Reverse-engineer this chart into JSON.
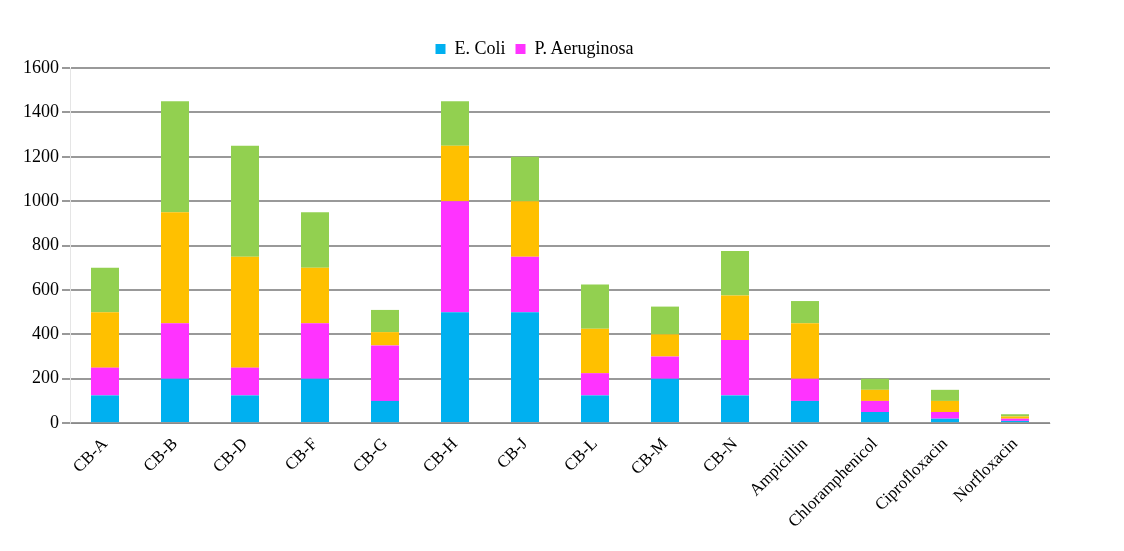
{
  "chart_data": {
    "type": "bar",
    "stacked": true,
    "categories": [
      "CB-A",
      "CB-B",
      "CB-D",
      "CB-F",
      "CB-G",
      "CB-H",
      "CB-J",
      "CB-L",
      "CB-M",
      "CB-N",
      "Ampicillin",
      "Chloramphenicol",
      "Ciprofloxacin",
      "Norfloxacin"
    ],
    "series": [
      {
        "name": "E. Coli",
        "color": "#00b0f0",
        "values": [
          125,
          200,
          125,
          200,
          100,
          500,
          500,
          125,
          200,
          125,
          100,
          50,
          20,
          10
        ]
      },
      {
        "name": "P. Aeruginosa",
        "color": "#ff33ff",
        "values": [
          125,
          250,
          125,
          250,
          250,
          500,
          250,
          100,
          100,
          250,
          100,
          50,
          30,
          10
        ]
      },
      {
        "color": "#ffc000",
        "values": [
          250,
          500,
          500,
          250,
          60,
          250,
          250,
          200,
          100,
          200,
          250,
          50,
          50,
          10
        ]
      },
      {
        "color": "#92d050",
        "values": [
          200,
          500,
          500,
          250,
          100,
          200,
          200,
          200,
          125,
          200,
          100,
          50,
          50,
          10
        ]
      }
    ],
    "ylim": [
      0,
      1600
    ],
    "yticks": [
      0,
      200,
      400,
      600,
      800,
      1000,
      1200,
      1400,
      1600
    ],
    "grid": "y",
    "legend": "top"
  }
}
